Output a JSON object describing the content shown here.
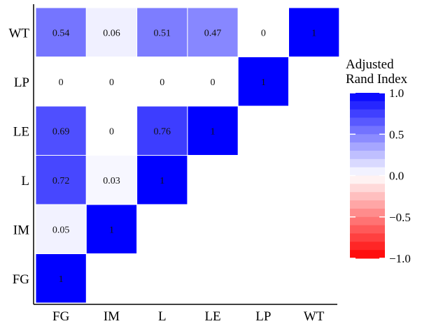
{
  "chart_data": {
    "type": "heatmap",
    "x_categories": [
      "FG",
      "IM",
      "L",
      "LE",
      "LP",
      "WT"
    ],
    "y_categories": [
      "WT",
      "LP",
      "LE",
      "L",
      "IM",
      "FG"
    ],
    "cells": [
      {
        "row": "WT",
        "col": "FG",
        "value": 0.54,
        "label": "0.54"
      },
      {
        "row": "WT",
        "col": "IM",
        "value": 0.06,
        "label": "0.06"
      },
      {
        "row": "WT",
        "col": "L",
        "value": 0.51,
        "label": "0.51"
      },
      {
        "row": "WT",
        "col": "LE",
        "value": 0.47,
        "label": "0.47"
      },
      {
        "row": "WT",
        "col": "LP",
        "value": 0,
        "label": "0"
      },
      {
        "row": "WT",
        "col": "WT",
        "value": 1,
        "label": "1"
      },
      {
        "row": "LP",
        "col": "FG",
        "value": 0,
        "label": "0"
      },
      {
        "row": "LP",
        "col": "IM",
        "value": 0,
        "label": "0"
      },
      {
        "row": "LP",
        "col": "L",
        "value": 0,
        "label": "0"
      },
      {
        "row": "LP",
        "col": "LE",
        "value": 0,
        "label": "0"
      },
      {
        "row": "LP",
        "col": "LP",
        "value": 1,
        "label": "1"
      },
      {
        "row": "LE",
        "col": "FG",
        "value": 0.69,
        "label": "0.69"
      },
      {
        "row": "LE",
        "col": "IM",
        "value": 0,
        "label": "0"
      },
      {
        "row": "LE",
        "col": "L",
        "value": 0.76,
        "label": "0.76"
      },
      {
        "row": "LE",
        "col": "LE",
        "value": 1,
        "label": "1"
      },
      {
        "row": "L",
        "col": "FG",
        "value": 0.72,
        "label": "0.72"
      },
      {
        "row": "L",
        "col": "IM",
        "value": 0.03,
        "label": "0.03"
      },
      {
        "row": "L",
        "col": "L",
        "value": 1,
        "label": "1"
      },
      {
        "row": "IM",
        "col": "FG",
        "value": 0.05,
        "label": "0.05"
      },
      {
        "row": "IM",
        "col": "IM",
        "value": 1,
        "label": "1"
      },
      {
        "row": "FG",
        "col": "FG",
        "value": 1,
        "label": "1"
      }
    ],
    "legend": {
      "title": [
        "Adjusted",
        "Rand Index"
      ],
      "range": [
        -1,
        1
      ],
      "ticks": [
        {
          "value": 1,
          "label": "1.0"
        },
        {
          "value": 0.5,
          "label": "0.5"
        },
        {
          "value": 0,
          "label": "0.0"
        },
        {
          "value": -0.5,
          "label": "−0.5"
        },
        {
          "value": -1,
          "label": "−1.0"
        }
      ],
      "placement": "right"
    },
    "colors": {
      "low": "#ff0000",
      "mid": "#ffffff",
      "high": "#0000ff"
    },
    "title": "",
    "xlabel": "",
    "ylabel": ""
  }
}
